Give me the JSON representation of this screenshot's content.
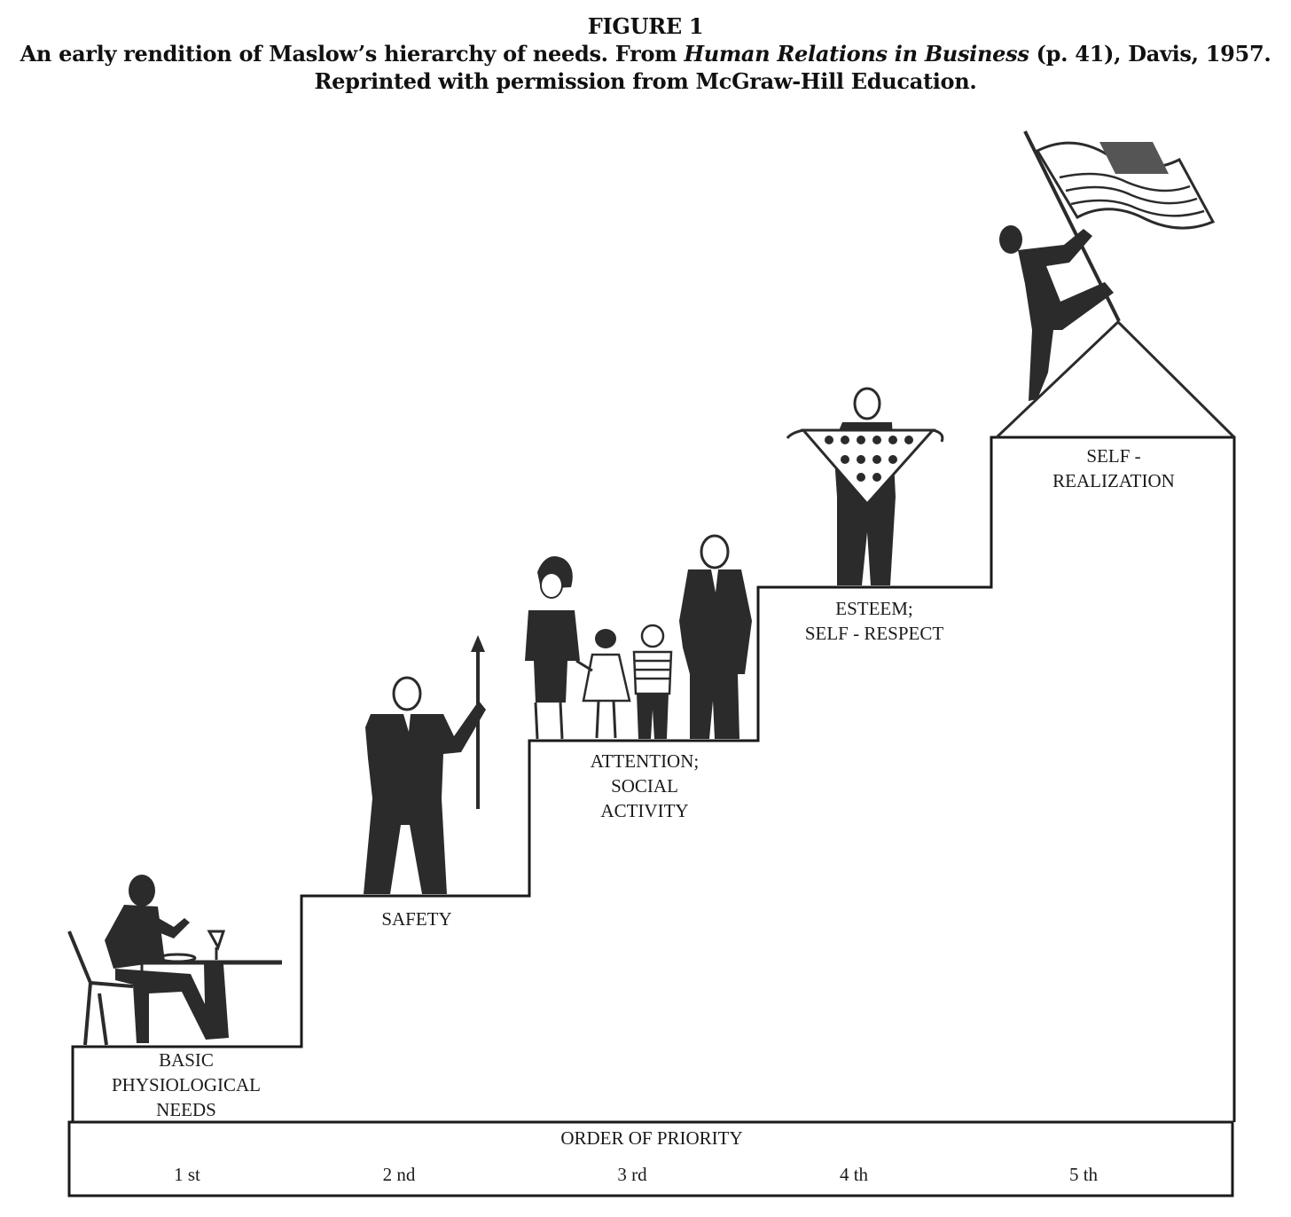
{
  "caption": {
    "figure_label": "FIGURE 1",
    "line2_before": "An early rendition of Maslow’s hierarchy of needs. From ",
    "line2_italic": "Human Relations in Business",
    "line2_after": " (p. 41), Davis, 1957.",
    "line3": "Reprinted with permission from McGraw-Hill Education."
  },
  "steps": [
    {
      "label_lines": [
        "BASIC",
        "PHYSIOLOGICAL",
        "NEEDS"
      ],
      "rank": "1 st",
      "figure_icon": "diner-at-table-icon"
    },
    {
      "label_lines": [
        "SAFETY"
      ],
      "rank": "2 nd",
      "figure_icon": "man-with-spear-icon"
    },
    {
      "label_lines": [
        "ATTENTION;",
        "SOCIAL",
        "ACTIVITY"
      ],
      "rank": "3 rd",
      "figure_icon": "family-icon"
    },
    {
      "label_lines": [
        "ESTEEM;",
        "SELF - RESPECT"
      ],
      "rank": "4 th",
      "figure_icon": "man-with-medal-banner-icon"
    },
    {
      "label_lines": [
        "SELF -",
        "REALIZATION"
      ],
      "rank": "5 th",
      "figure_icon": "climber-with-flag-icon"
    }
  ],
  "priority_bar": {
    "title": "ORDER OF PRIORITY"
  },
  "colors": {
    "ink": "#1a1a1a",
    "figure_fill": "#2b2b2b",
    "paper": "#ffffff"
  }
}
